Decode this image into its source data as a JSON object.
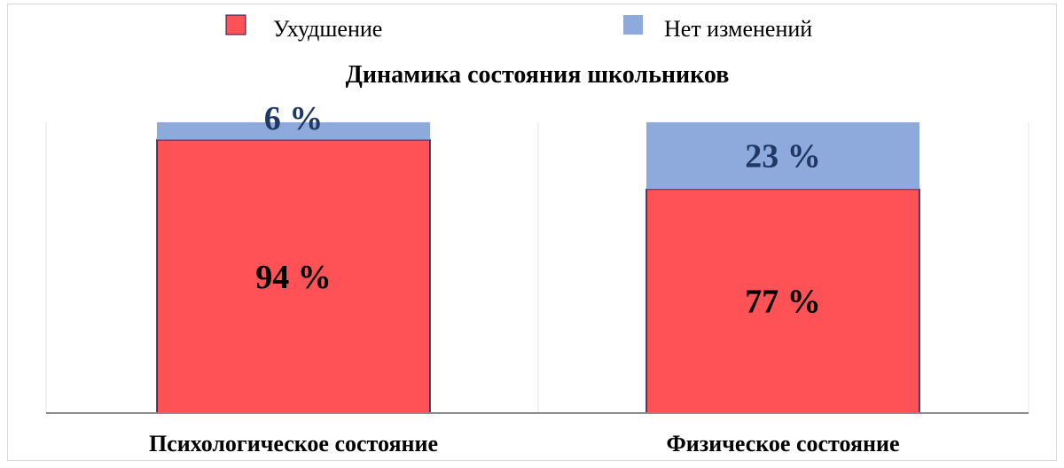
{
  "chart_data": {
    "type": "bar",
    "stacked": true,
    "percent": true,
    "title": "Динамика состояния школьников",
    "categories": [
      "Психологическое состояние",
      "Физическое состояние"
    ],
    "series": [
      {
        "name": "Ухудшение",
        "values": [
          94,
          77
        ],
        "labels": [
          "94 %",
          "77 %"
        ],
        "color": "#FF5256",
        "label_color": "#000000"
      },
      {
        "name": "Нет изменений",
        "values": [
          6,
          23
        ],
        "labels": [
          "6 %",
          "23 %"
        ],
        "color": "#8EA9DB",
        "label_color": "#1F3864"
      }
    ],
    "ylim": [
      0,
      100
    ],
    "legend": "top",
    "grid": false
  }
}
